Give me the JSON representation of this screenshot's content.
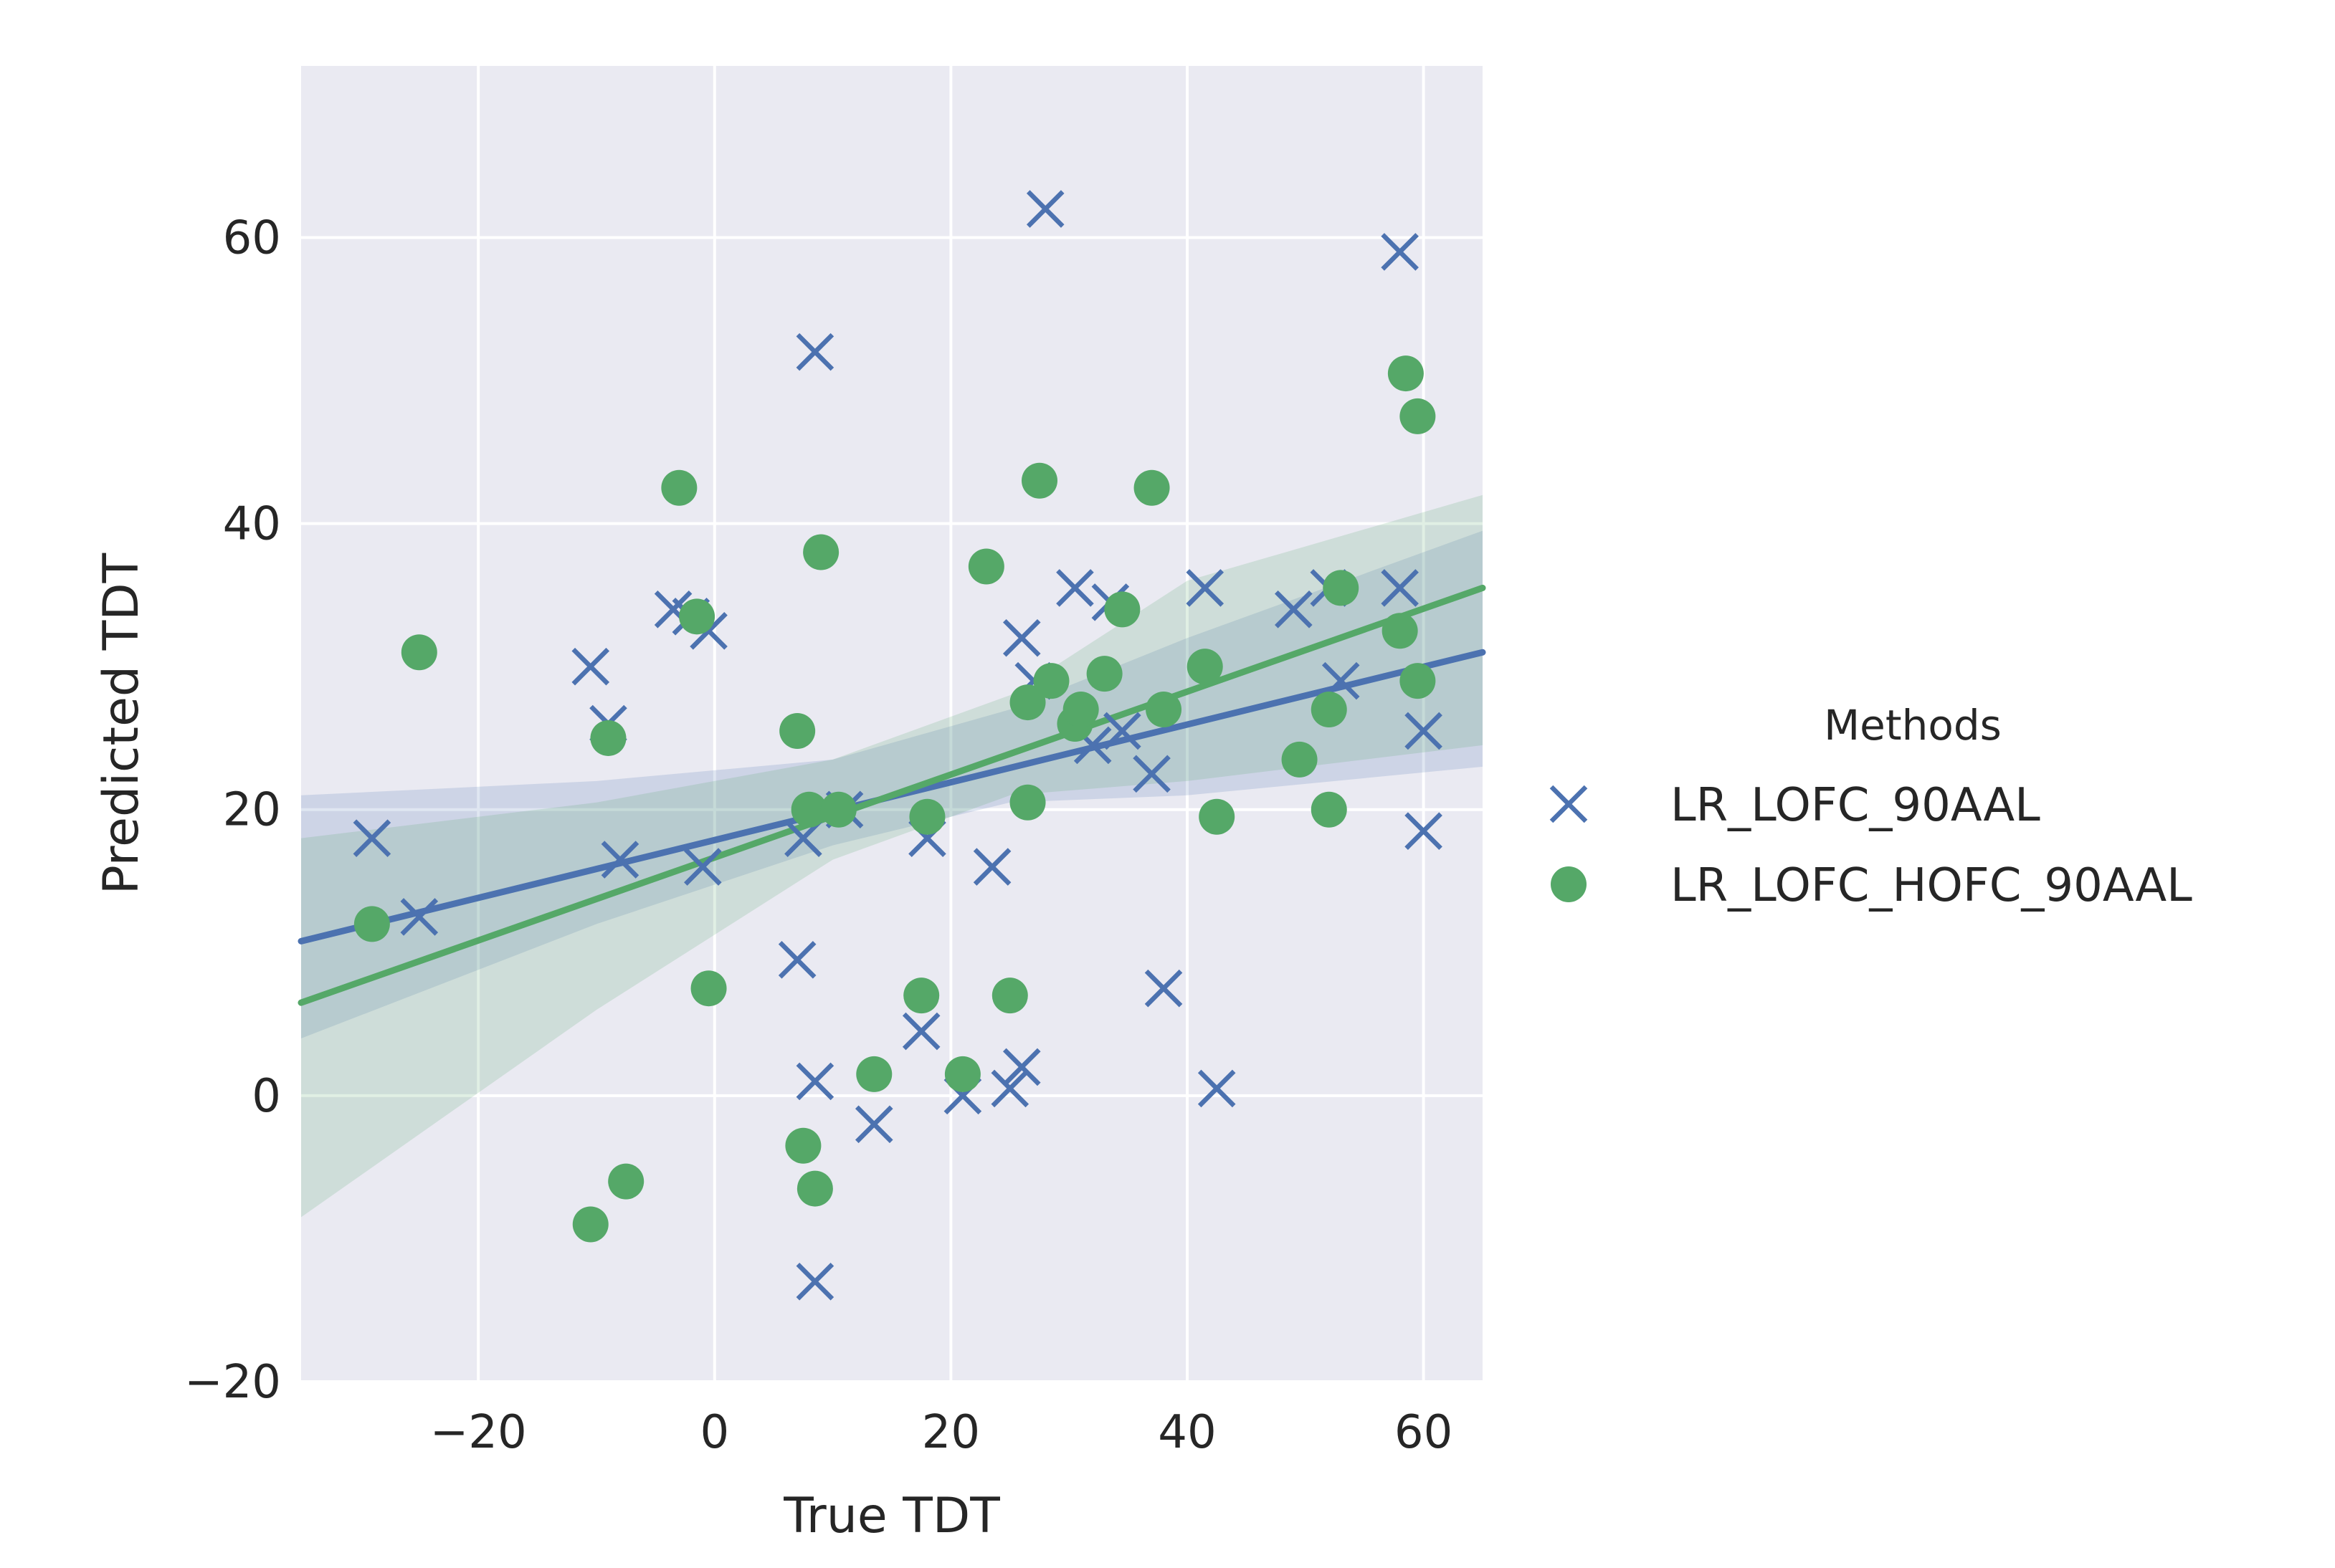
{
  "chart_data": {
    "type": "scatter",
    "title": "",
    "xlabel": "True TDT",
    "ylabel": "Predicted TDT",
    "xlim": [
      -35,
      65
    ],
    "ylim": [
      -20,
      72
    ],
    "xticks": [
      -20,
      0,
      20,
      40,
      60
    ],
    "yticks": [
      -20,
      0,
      20,
      40,
      60
    ],
    "xtick_labels": [
      "−20",
      "0",
      "20",
      "40",
      "60"
    ],
    "ytick_labels": [
      "−20",
      "0",
      "20",
      "40",
      "60"
    ],
    "grid": true,
    "legend": {
      "title": "Methods",
      "placement": "right"
    },
    "series": [
      {
        "name": "LR_LOFC_90AAL",
        "marker": "x",
        "color": "#4c72b0",
        "points": [
          [
            -29,
            18
          ],
          [
            -25,
            12.5
          ],
          [
            -10.5,
            30
          ],
          [
            -9,
            26
          ],
          [
            -8,
            16.5
          ],
          [
            -3.5,
            34
          ],
          [
            -2,
            33.5
          ],
          [
            -0.5,
            32.5
          ],
          [
            -1,
            16
          ],
          [
            7,
            9.5
          ],
          [
            7.5,
            18
          ],
          [
            8.5,
            52
          ],
          [
            8.5,
            1
          ],
          [
            8.5,
            -13
          ],
          [
            11,
            20
          ],
          [
            13.5,
            -2
          ],
          [
            17.5,
            4.5
          ],
          [
            18,
            18
          ],
          [
            21,
            0
          ],
          [
            23.5,
            16
          ],
          [
            25,
            0.5
          ],
          [
            26,
            32
          ],
          [
            26,
            2
          ],
          [
            27,
            29
          ],
          [
            28,
            62
          ],
          [
            30.5,
            35.5
          ],
          [
            32,
            24.5
          ],
          [
            33.5,
            34.5
          ],
          [
            34.5,
            25.5
          ],
          [
            37,
            22.5
          ],
          [
            38,
            7.5
          ],
          [
            41.5,
            35.5
          ],
          [
            42.5,
            0.5
          ],
          [
            49,
            34
          ],
          [
            52,
            35.5
          ],
          [
            53,
            29
          ],
          [
            58,
            59
          ],
          [
            58,
            35.5
          ],
          [
            60,
            25.5
          ],
          [
            60,
            18.5
          ]
        ],
        "fit": {
          "x0": -35,
          "x1": 65,
          "y0": 10.8,
          "y1": 31.0
        },
        "band_lower": [
          [
            -35,
            4.0
          ],
          [
            -10,
            12.0
          ],
          [
            10,
            17.5
          ],
          [
            25,
            20.5
          ],
          [
            40,
            21.0
          ],
          [
            65,
            23.0
          ]
        ],
        "band_upper": [
          [
            -35,
            21.0
          ],
          [
            -10,
            22.0
          ],
          [
            10,
            23.5
          ],
          [
            25,
            27.0
          ],
          [
            40,
            32.0
          ],
          [
            65,
            39.5
          ]
        ]
      },
      {
        "name": "LR_LOFC_HOFC_90AAL",
        "marker": "o",
        "color": "#55a868",
        "points": [
          [
            -29,
            12
          ],
          [
            -25,
            31
          ],
          [
            -10.5,
            -9
          ],
          [
            -9,
            25
          ],
          [
            -7.5,
            -6
          ],
          [
            -3,
            42.5
          ],
          [
            -1.5,
            33.5
          ],
          [
            -0.5,
            7.5
          ],
          [
            7,
            25.5
          ],
          [
            7.5,
            -3.5
          ],
          [
            8,
            20
          ],
          [
            8.5,
            -6.5
          ],
          [
            9,
            38
          ],
          [
            10.5,
            20
          ],
          [
            13.5,
            1.5
          ],
          [
            17.5,
            7
          ],
          [
            18,
            19.5
          ],
          [
            21,
            1.5
          ],
          [
            23,
            37
          ],
          [
            25,
            7
          ],
          [
            26.5,
            27.5
          ],
          [
            26.5,
            20.5
          ],
          [
            27.5,
            43
          ],
          [
            28.5,
            29
          ],
          [
            30.5,
            26
          ],
          [
            31,
            27
          ],
          [
            33,
            29.5
          ],
          [
            34.5,
            34
          ],
          [
            37,
            42.5
          ],
          [
            38,
            27
          ],
          [
            41.5,
            30
          ],
          [
            42.5,
            19.5
          ],
          [
            49.5,
            23.5
          ],
          [
            52,
            27
          ],
          [
            52,
            20
          ],
          [
            53,
            35.5
          ],
          [
            58,
            32.5
          ],
          [
            58.5,
            50.5
          ],
          [
            59.5,
            47.5
          ],
          [
            59.5,
            29
          ]
        ],
        "fit": {
          "x0": -35,
          "x1": 65,
          "y0": 6.5,
          "y1": 35.5
        },
        "band_lower": [
          [
            -35,
            -8.5
          ],
          [
            -10,
            6.0
          ],
          [
            10,
            16.5
          ],
          [
            25,
            21.0
          ],
          [
            40,
            22.0
          ],
          [
            65,
            24.5
          ]
        ],
        "band_upper": [
          [
            -35,
            18.0
          ],
          [
            -10,
            20.5
          ],
          [
            10,
            23.5
          ],
          [
            25,
            28.0
          ],
          [
            40,
            36.0
          ],
          [
            65,
            42.0
          ]
        ]
      }
    ]
  },
  "colors": {
    "plot_background": "#eaeaf2",
    "grid": "#ffffff",
    "blue": "#4c72b0",
    "green": "#55a868"
  }
}
